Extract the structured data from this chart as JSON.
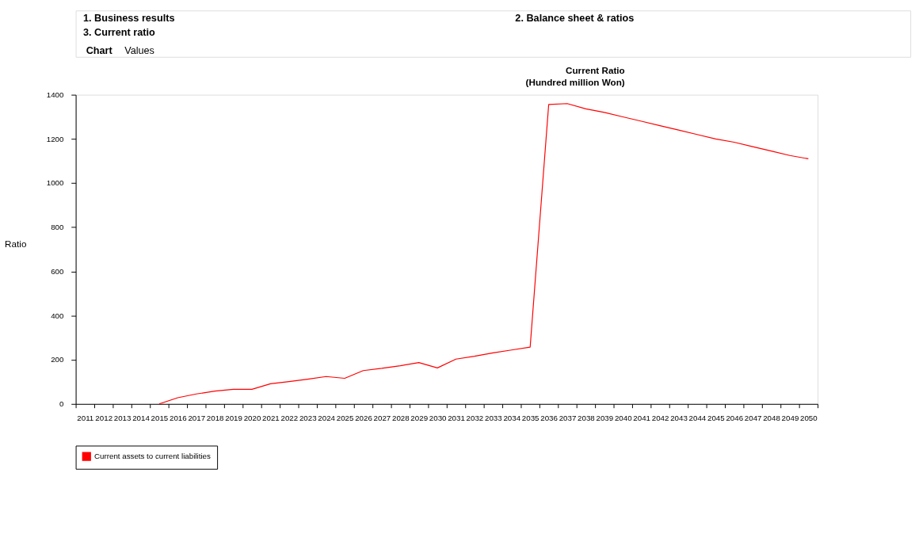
{
  "chart_data": {
    "type": "line",
    "title": "Current Ratio",
    "subtitle": "(Hundred million Won)",
    "ylabel": "Ratio",
    "annotations": [
      "1. Business results",
      "2. Balance sheet & ratios",
      "3. Current ratio",
      "Chart",
      "Values"
    ],
    "categories": [
      "2011",
      "2012",
      "2013",
      "2014",
      "2015",
      "2016",
      "2017",
      "2018",
      "2019",
      "2020",
      "2021",
      "2022",
      "2023",
      "2024",
      "2025",
      "2026",
      "2027",
      "2028",
      "2029",
      "2030",
      "2031",
      "2032",
      "2033",
      "2034",
      "2035",
      "2036",
      "2037",
      "2038",
      "2039",
      "2040",
      "2041",
      "2042",
      "2043",
      "2044",
      "2045",
      "2046",
      "2047",
      "2048",
      "2049",
      "2050"
    ],
    "series": [
      {
        "name": "Current assets to current liabilities",
        "color": "#ff0000",
        "values": [
          null,
          null,
          null,
          null,
          0,
          28,
          45,
          58,
          66,
          66,
          91,
          101,
          112,
          124,
          116,
          151,
          161,
          173,
          187,
          163,
          203,
          216,
          231,
          244,
          257,
          1356,
          1360,
          1336,
          1320,
          1300,
          1280,
          1260,
          1240,
          1220,
          1200,
          1185,
          1165,
          1145,
          1125,
          1110
        ]
      }
    ],
    "ylim": [
      0,
      1400
    ],
    "yticks": [
      0,
      200,
      400,
      600,
      800,
      1000,
      1200,
      1400
    ],
    "grid": false,
    "legend": "bottom",
    "marker": "none",
    "line_style": "solid"
  }
}
